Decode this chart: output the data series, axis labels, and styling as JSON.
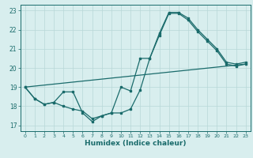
{
  "xlabel": "Humidex (Indice chaleur)",
  "bg_color": "#d8eeee",
  "grid_color": "#b8d8d8",
  "line_color": "#1a6b6b",
  "xlim": [
    -0.5,
    23.5
  ],
  "ylim": [
    16.7,
    23.3
  ],
  "yticks": [
    17,
    18,
    19,
    20,
    21,
    22,
    23
  ],
  "xticks": [
    0,
    1,
    2,
    3,
    4,
    5,
    6,
    7,
    8,
    9,
    10,
    11,
    12,
    13,
    14,
    15,
    16,
    17,
    18,
    19,
    20,
    21,
    22,
    23
  ],
  "line1_x": [
    0,
    1,
    2,
    3,
    4,
    5,
    6,
    7,
    8,
    9,
    10,
    11,
    12,
    13,
    14,
    15,
    16,
    17,
    18,
    19,
    20,
    21,
    22,
    23
  ],
  "line1_y": [
    19.0,
    18.4,
    18.1,
    18.2,
    18.0,
    17.85,
    17.75,
    17.35,
    17.5,
    17.65,
    17.65,
    17.85,
    18.85,
    20.5,
    21.8,
    22.9,
    22.9,
    22.6,
    22.0,
    21.5,
    21.0,
    20.3,
    20.2,
    20.3
  ],
  "line2_x": [
    0,
    1,
    2,
    3,
    4,
    5,
    6,
    7,
    8,
    9,
    10,
    11,
    12,
    13,
    14,
    15,
    16,
    17,
    18,
    19,
    20,
    21,
    22,
    23
  ],
  "line2_y": [
    19.0,
    18.4,
    18.1,
    18.2,
    18.75,
    18.75,
    17.65,
    17.2,
    17.5,
    17.65,
    19.0,
    18.8,
    20.5,
    20.5,
    21.7,
    22.85,
    22.85,
    22.5,
    21.9,
    21.4,
    20.9,
    20.2,
    20.1,
    20.2
  ],
  "line3_x": [
    0,
    23
  ],
  "line3_y": [
    19.0,
    20.2
  ]
}
